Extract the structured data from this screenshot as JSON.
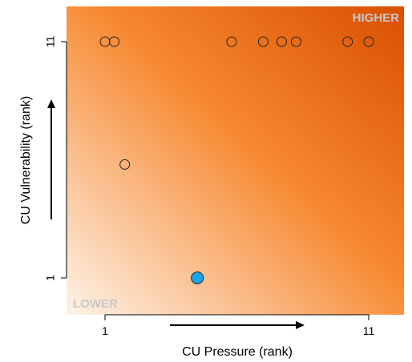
{
  "chart_data": {
    "type": "scatter",
    "xlabel": "CU Pressure (rank)",
    "ylabel": "CU Vulnerability (rank)",
    "xlim": [
      0.6,
      12.3
    ],
    "ylim": [
      -0.7,
      12.5
    ],
    "x_ticks": [
      1,
      11
    ],
    "y_ticks": [
      1,
      11
    ],
    "grid": false,
    "background": "orange diagonal gradient: light (lower-left) to dark (upper-right)",
    "corner_labels": {
      "high": "HIGHER",
      "low": "LOWER"
    },
    "points": [
      {
        "x": 1.0,
        "y": 11,
        "highlight": false
      },
      {
        "x": 1.35,
        "y": 11,
        "highlight": false
      },
      {
        "x": 5.8,
        "y": 11,
        "highlight": false
      },
      {
        "x": 7.0,
        "y": 11,
        "highlight": false
      },
      {
        "x": 7.7,
        "y": 11,
        "highlight": false
      },
      {
        "x": 8.25,
        "y": 11,
        "highlight": false
      },
      {
        "x": 10.2,
        "y": 11,
        "highlight": false
      },
      {
        "x": 11.0,
        "y": 11,
        "highlight": false
      },
      {
        "x": 1.75,
        "y": 5.8,
        "highlight": false
      },
      {
        "x": 4.5,
        "y": 1,
        "highlight": true
      }
    ],
    "colors": {
      "highlight_fill": "#1aa6e6",
      "gradient_light": "#fdf3e8",
      "gradient_mid": "#f7882f",
      "gradient_dark": "#d94f00",
      "corner_text": "#c8c8c8"
    }
  }
}
